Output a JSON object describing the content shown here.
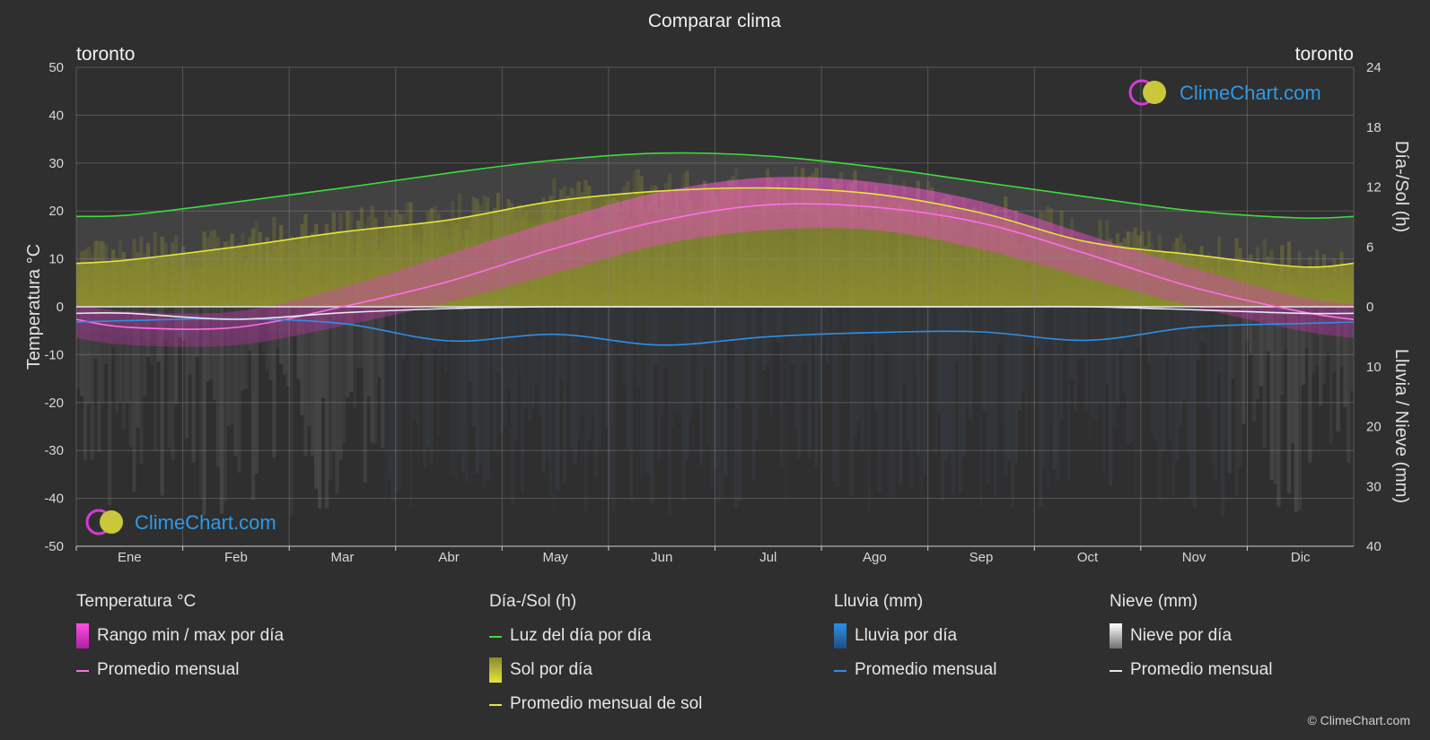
{
  "chart_data": {
    "type": "line",
    "title": "Comparar clima",
    "location_left": "toronto",
    "location_right": "toronto",
    "months": [
      "Ene",
      "Feb",
      "Mar",
      "Abr",
      "May",
      "Jun",
      "Jul",
      "Ago",
      "Sep",
      "Oct",
      "Nov",
      "Dic"
    ],
    "y_left": {
      "label": "Temperatura °C",
      "range": [
        -50,
        50
      ],
      "ticks": [
        -50,
        -40,
        -30,
        -20,
        -10,
        0,
        10,
        20,
        30,
        40,
        50
      ]
    },
    "y_right_top": {
      "label": "Día-/Sol (h)",
      "range": [
        0,
        24
      ],
      "ticks": [
        0,
        6,
        12,
        18,
        24
      ]
    },
    "y_right_bottom": {
      "label": "Lluvia / Nieve (mm)",
      "range": [
        0,
        40
      ],
      "ticks": [
        0,
        10,
        20,
        30,
        40
      ]
    },
    "grid": true,
    "series": [
      {
        "name": "Luz del día por día",
        "axis": "hours",
        "color": "#3ddc3d",
        "values": [
          9.2,
          10.5,
          11.9,
          13.4,
          14.7,
          15.4,
          15.1,
          14.0,
          12.5,
          11.0,
          9.6,
          8.9
        ]
      },
      {
        "name": "Promedio mensual de sol",
        "axis": "hours",
        "color": "#e5e53a",
        "values": [
          4.7,
          6.0,
          7.5,
          8.7,
          10.6,
          11.6,
          11.9,
          11.3,
          9.4,
          6.5,
          5.2,
          4.0
        ]
      },
      {
        "name": "Promedio mensual",
        "group": "Temperatura °C",
        "axis": "temp",
        "color": "#ff6ee8",
        "values": [
          -4.3,
          -4.3,
          0.0,
          5.3,
          12.2,
          18.0,
          21.3,
          20.8,
          17.5,
          11.0,
          4.0,
          -1.0
        ]
      },
      {
        "name": "Promedio mensual",
        "group": "Lluvia (mm)",
        "axis": "precip",
        "color": "#2e8fe6",
        "values": [
          2.3,
          2.0,
          2.8,
          5.7,
          4.6,
          6.4,
          5.0,
          4.3,
          4.2,
          5.6,
          3.4,
          2.8
        ]
      },
      {
        "name": "Promedio mensual",
        "group": "Nieve (mm)",
        "axis": "precip",
        "color": "#e8e8e8",
        "values": [
          1.1,
          2.1,
          1.0,
          0.3,
          0.0,
          0.0,
          0.0,
          0.0,
          0.0,
          0.0,
          0.5,
          1.1
        ]
      }
    ],
    "bands": {
      "temp_daily_max": [
        -1,
        -1,
        4,
        11,
        18,
        24,
        27,
        26,
        22,
        15,
        8,
        2
      ],
      "temp_daily_min": [
        -8,
        -8,
        -4,
        1,
        7,
        13,
        16,
        16,
        12,
        6,
        0,
        -5
      ]
    }
  },
  "legend": {
    "temp": {
      "title": "Temperatura °C",
      "items": [
        "Rango min / max por día",
        "Promedio mensual"
      ]
    },
    "sun": {
      "title": "Día-/Sol (h)",
      "items": [
        "Luz del día por día",
        "Sol por día",
        "Promedio mensual de sol"
      ]
    },
    "rain": {
      "title": "Lluvia (mm)",
      "items": [
        "Lluvia por día",
        "Promedio mensual"
      ]
    },
    "snow": {
      "title": "Nieve (mm)",
      "items": [
        "Nieve por día",
        "Promedio mensual"
      ]
    }
  },
  "branding": {
    "logo_text": "ClimeChart.com",
    "copyright": "© ClimeChart.com"
  },
  "colors": {
    "daylight": "#3ddc3d",
    "sun": "#e5e53a",
    "temp": "#ff6ee8",
    "rain": "#2e8fe6",
    "snow": "#e8e8e8",
    "background": "#2f2f2f"
  }
}
